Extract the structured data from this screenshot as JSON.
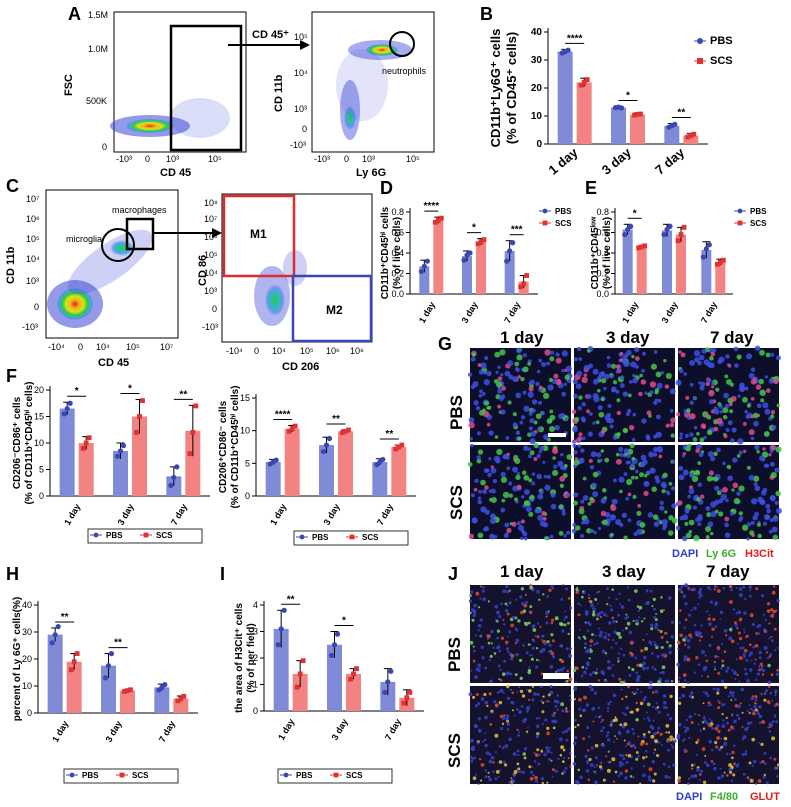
{
  "panels": {
    "A": "A",
    "B": "B",
    "C": "C",
    "D": "D",
    "E": "E",
    "F": "F",
    "G": "G",
    "H": "H",
    "I": "I",
    "J": "J"
  },
  "flow_A": {
    "left_x_label": "CD 45",
    "left_y_label": "FSC",
    "left_y_ticks": [
      "1.5M",
      "1.0M",
      "500K",
      "0"
    ],
    "left_x_ticks": [
      "-10³",
      "0",
      "10³",
      "10⁵"
    ],
    "gate_label": "CD 45⁺",
    "right_x_label": "Ly 6G",
    "right_y_label": "CD 11b",
    "right_y_ticks": [
      "10⁵",
      "10⁴",
      "10³",
      "0",
      "-10³"
    ],
    "right_x_ticks": [
      "-10³",
      "0",
      "10³",
      "10⁵"
    ],
    "population": "neutrophils"
  },
  "flow_C": {
    "left_x_label": "CD 45",
    "left_y_label": "CD 11b",
    "left_y_ticks": [
      "10⁷",
      "10⁶",
      "10⁵",
      "10⁴",
      "10³",
      "0",
      "-10³"
    ],
    "left_x_ticks": [
      "-10⁴",
      "0",
      "10⁴",
      "10⁵",
      "10⁷"
    ],
    "pop1": "microglia",
    "pop2": "macrophages",
    "right_x_label": "CD 206",
    "right_y_label": "CD 86",
    "right_y_ticks": [
      "10⁸",
      "10⁷",
      "10⁶",
      "10⁵",
      "10⁴",
      "10³",
      "0",
      "-10³"
    ],
    "right_x_ticks": [
      "-10⁴",
      "0",
      "10⁴",
      "10⁵",
      "10⁶",
      "10⁸"
    ],
    "gate_m1": "M1",
    "gate_m2": "M2"
  },
  "microscopy_G": {
    "columns": [
      "1 day",
      "3 day",
      "7 day"
    ],
    "rows": [
      "PBS",
      "SCS"
    ],
    "stain": [
      "DAPI",
      "Ly 6G",
      "H3Cit"
    ],
    "stain_colors": [
      "#2b3bd6",
      "#3cae2c",
      "#e01b1b"
    ]
  },
  "microscopy_J": {
    "columns": [
      "1 day",
      "3 day",
      "7 day"
    ],
    "rows": [
      "PBS",
      "SCS"
    ],
    "stain": [
      "DAPI",
      "F4/80",
      "GLUT"
    ],
    "stain_colors": [
      "#2b3bd6",
      "#3cae2c",
      "#e01b1b"
    ]
  },
  "colors": {
    "pbs": "#7f8bd6",
    "scs": "#f38383",
    "pbs_dot": "#3b46b5",
    "scs_dot": "#e33131"
  },
  "chart_data": [
    {
      "id": "B",
      "type": "bar",
      "categories": [
        "1 day",
        "3 day",
        "7 day"
      ],
      "series": [
        {
          "name": "PBS",
          "values": [
            33,
            13,
            6.5
          ],
          "err": [
            0.8,
            0.4,
            0.8
          ],
          "points": [
            [
              32.5,
              33,
              33.5
            ],
            [
              13,
              13.2,
              12.9
            ],
            [
              6,
              6.5,
              7
            ]
          ]
        },
        {
          "name": "SCS",
          "values": [
            22,
            10.5,
            3
          ],
          "err": [
            1.5,
            0.6,
            0.8
          ],
          "points": [
            [
              21,
              22,
              23
            ],
            [
              10.3,
              10.6,
              10.7
            ],
            [
              2.5,
              3,
              3.5
            ]
          ]
        }
      ],
      "ylabel": "CD11b⁺Ly6G⁺ cells\n(% of CD45⁺ cells)",
      "ylabel_lines": [
        "CD11b⁺Ly6G⁺ cells",
        "(% of CD45⁺ cells)"
      ],
      "ylim": [
        0,
        40
      ],
      "yticks": [
        0,
        10,
        20,
        30,
        40
      ],
      "significance": [
        "****",
        "*",
        "**"
      ],
      "legend": [
        "PBS",
        "SCS"
      ]
    },
    {
      "id": "D",
      "type": "bar",
      "categories": [
        "1 day",
        "3 day",
        "7 day"
      ],
      "series": [
        {
          "name": "PBS",
          "values": [
            0.27,
            0.37,
            0.42
          ],
          "err": [
            0.06,
            0.05,
            0.1
          ],
          "points": [
            [
              0.22,
              0.27,
              0.32
            ],
            [
              0.33,
              0.38,
              0.4
            ],
            [
              0.32,
              0.42,
              0.5
            ]
          ]
        },
        {
          "name": "SCS",
          "values": [
            0.72,
            0.51,
            0.12
          ],
          "err": [
            0.03,
            0.03,
            0.06
          ],
          "points": [
            [
              0.7,
              0.72,
              0.74
            ],
            [
              0.49,
              0.51,
              0.53
            ],
            [
              0.07,
              0.1,
              0.18
            ]
          ]
        }
      ],
      "ylabel_lines": [
        "CD11b⁺CD45ʰⁱ cells",
        "(% of live cells)"
      ],
      "ylim": [
        0,
        0.8
      ],
      "yticks": [
        0.0,
        0.2,
        0.4,
        0.6,
        0.8
      ],
      "significance": [
        "****",
        "*",
        "***"
      ],
      "legend": [
        "PBS",
        "SCS"
      ]
    },
    {
      "id": "E",
      "type": "bar",
      "categories": [
        "1 day",
        "3 day",
        "7 day"
      ],
      "series": [
        {
          "name": "PBS",
          "values": [
            0.63,
            0.62,
            0.43
          ],
          "err": [
            0.05,
            0.06,
            0.08
          ],
          "points": [
            [
              0.58,
              0.63,
              0.66
            ],
            [
              0.58,
              0.63,
              0.66
            ],
            [
              0.36,
              0.44,
              0.48
            ]
          ]
        },
        {
          "name": "SCS",
          "values": [
            0.46,
            0.58,
            0.31
          ],
          "err": [
            0.01,
            0.07,
            0.03
          ],
          "points": [
            [
              0.45,
              0.46,
              0.47
            ],
            [
              0.52,
              0.58,
              0.65
            ],
            [
              0.29,
              0.31,
              0.33
            ]
          ]
        }
      ],
      "ylabel_lines": [
        "CD11b⁺CD45ˡᵒʷ",
        "(% of live cells)"
      ],
      "ylim": [
        0,
        0.8
      ],
      "yticks": [
        0.0,
        0.2,
        0.4,
        0.6,
        0.8
      ],
      "significance": [
        "*",
        "",
        ""
      ],
      "legend": [
        "PBS",
        "SCS"
      ]
    },
    {
      "id": "F1",
      "type": "bar",
      "categories": [
        "1 day",
        "3 day",
        "7 day"
      ],
      "series": [
        {
          "name": "PBS",
          "values": [
            16.5,
            8.5,
            3.7
          ],
          "err": [
            1.2,
            1.5,
            1.8
          ],
          "points": [
            [
              15.5,
              16.5,
              17.5
            ],
            [
              7.5,
              8.5,
              9.5
            ],
            [
              2,
              3.5,
              5.5
            ]
          ]
        },
        {
          "name": "SCS",
          "values": [
            10,
            15,
            12.3
          ],
          "err": [
            1.2,
            3.2,
            4.8
          ],
          "points": [
            [
              9,
              10,
              11
            ],
            [
              12,
              15,
              18
            ],
            [
              8,
              12,
              17
            ]
          ]
        }
      ],
      "ylabel_lines": [
        "CD206⁻CD86⁺ cells",
        "(% of CD11b⁺CD45ʰⁱ cells)"
      ],
      "ylim": [
        0,
        20
      ],
      "yticks": [
        0,
        5,
        10,
        15,
        20
      ],
      "significance": [
        "*",
        "*",
        "**"
      ],
      "legend": [
        "PBS",
        "SCS"
      ]
    },
    {
      "id": "F2",
      "type": "bar",
      "categories": [
        "1 day",
        "3 day",
        "7 day"
      ],
      "series": [
        {
          "name": "PBS",
          "values": [
            5.2,
            7.8,
            5.2
          ],
          "err": [
            0.4,
            1.2,
            0.5
          ],
          "points": [
            [
              4.9,
              5.2,
              5.5
            ],
            [
              6.8,
              7.8,
              8.8
            ],
            [
              4.8,
              5.2,
              5.6
            ]
          ]
        },
        {
          "name": "SCS",
          "values": [
            10.3,
            9.9,
            7.5
          ],
          "err": [
            0.5,
            0.2,
            0.3
          ],
          "points": [
            [
              9.9,
              10.3,
              10.7
            ],
            [
              9.7,
              9.9,
              10.1
            ],
            [
              7.2,
              7.5,
              7.8
            ]
          ]
        }
      ],
      "ylabel_lines": [
        "CD206⁺CD86⁻ cells",
        "(% of CD11b⁺CD45ʰⁱ cells)"
      ],
      "ylim": [
        0,
        15
      ],
      "yticks": [
        0,
        5,
        10,
        15
      ],
      "significance": [
        "****",
        "**",
        "**"
      ],
      "legend": [
        "PBS",
        "SCS"
      ]
    },
    {
      "id": "H",
      "type": "bar",
      "categories": [
        "1 day",
        "3 day",
        "7 day"
      ],
      "series": [
        {
          "name": "PBS",
          "values": [
            29,
            17.5,
            9.5
          ],
          "err": [
            2.5,
            4.5,
            1.2
          ],
          "points": [
            [
              26,
              29,
              32
            ],
            [
              13,
              17.5,
              22
            ],
            [
              8.5,
              9.5,
              10.5
            ]
          ]
        },
        {
          "name": "SCS",
          "values": [
            19,
            8.3,
            5.3
          ],
          "err": [
            3,
            0.3,
            1
          ],
          "points": [
            [
              16,
              19,
              22
            ],
            [
              8,
              8.3,
              8.6
            ],
            [
              4.5,
              5.3,
              6.2
            ]
          ]
        }
      ],
      "ylabel_lines": [
        "percent of Ly 6G⁺ cells(%)"
      ],
      "ylim": [
        0,
        40
      ],
      "yticks": [
        0,
        10,
        20,
        30,
        40
      ],
      "significance": [
        "**",
        "**",
        ""
      ],
      "legend": [
        "PBS",
        "SCS"
      ]
    },
    {
      "id": "I",
      "type": "bar",
      "categories": [
        "1 day",
        "3 day",
        "7 day"
      ],
      "series": [
        {
          "name": "PBS",
          "values": [
            3.1,
            2.5,
            1.1
          ],
          "err": [
            0.7,
            0.5,
            0.5
          ],
          "points": [
            [
              2.5,
              3.1,
              3.8
            ],
            [
              2.1,
              2.5,
              2.9
            ],
            [
              0.7,
              1.1,
              1.5
            ]
          ]
        },
        {
          "name": "SCS",
          "values": [
            1.4,
            1.4,
            0.5
          ],
          "err": [
            0.5,
            0.2,
            0.3
          ],
          "points": [
            [
              0.9,
              1.4,
              1.9
            ],
            [
              1.2,
              1.4,
              1.6
            ],
            [
              0.3,
              0.5,
              0.7
            ]
          ]
        }
      ],
      "ylabel_lines": [
        "the area of H3Cit⁺ cells",
        "(% of per field)"
      ],
      "ylim": [
        0,
        4
      ],
      "yticks": [
        0,
        1,
        2,
        3,
        4
      ],
      "significance": [
        "**",
        "*",
        ""
      ],
      "legend": [
        "PBS",
        "SCS"
      ]
    }
  ]
}
